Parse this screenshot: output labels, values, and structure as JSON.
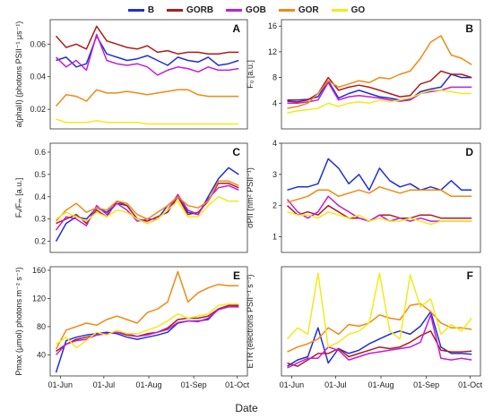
{
  "legend": [
    {
      "name": "B",
      "color": "#1f2fd6"
    },
    {
      "name": "GORB",
      "color": "#b01c1c"
    },
    {
      "name": "GOB",
      "color": "#c21fd8"
    },
    {
      "name": "GOR",
      "color": "#f08a12"
    },
    {
      "name": "GO",
      "color": "#f2ea1a"
    }
  ],
  "x_axis_title": "Date",
  "chart_data": [
    {
      "type": "line",
      "panel_letter": "A",
      "ylabel": "a(phaII) (photons PSII⁻¹ μs⁻¹)",
      "ylim": [
        0.008,
        0.075
      ],
      "yticks": [
        "0.02",
        "0.04",
        "0.06"
      ],
      "ytick_values": [
        0.02,
        0.04,
        0.06
      ],
      "xtick_labels": [],
      "x": [
        0,
        7,
        14,
        21,
        28,
        35,
        42,
        49,
        56,
        63,
        70,
        77,
        84,
        91,
        98,
        105,
        112,
        119,
        126
      ],
      "series": [
        {
          "name": "B",
          "values": [
            0.05,
            0.052,
            0.046,
            0.048,
            0.065,
            0.054,
            0.052,
            0.05,
            0.051,
            0.053,
            0.05,
            0.047,
            0.052,
            0.05,
            0.049,
            0.052,
            0.047,
            0.048,
            0.05
          ]
        },
        {
          "name": "GORB",
          "values": [
            0.065,
            0.058,
            0.06,
            0.057,
            0.071,
            0.062,
            0.06,
            0.058,
            0.057,
            0.059,
            0.055,
            0.056,
            0.054,
            0.055,
            0.055,
            0.054,
            0.054,
            0.055,
            0.055
          ]
        },
        {
          "name": "GOB",
          "values": [
            0.052,
            0.046,
            0.05,
            0.044,
            0.066,
            0.05,
            0.048,
            0.047,
            0.048,
            0.046,
            0.041,
            0.044,
            0.046,
            0.045,
            0.043,
            0.046,
            0.044,
            0.044,
            0.045
          ]
        },
        {
          "name": "GOR",
          "values": [
            0.022,
            0.029,
            0.028,
            0.025,
            0.032,
            0.03,
            0.03,
            0.031,
            0.03,
            0.029,
            0.03,
            0.031,
            0.032,
            0.032,
            0.029,
            0.028,
            0.028,
            0.028,
            0.028
          ]
        },
        {
          "name": "GO",
          "values": [
            0.014,
            0.012,
            0.012,
            0.012,
            0.013,
            0.012,
            0.012,
            0.012,
            0.012,
            0.011,
            0.011,
            0.011,
            0.011,
            0.011,
            0.011,
            0.011,
            0.011,
            0.011,
            0.011
          ]
        }
      ]
    },
    {
      "type": "line",
      "panel_letter": "B",
      "ylabel": "F₀ [a.u.]",
      "ylim": [
        0,
        17
      ],
      "yticks": [
        "4",
        "8",
        "12",
        "16"
      ],
      "ytick_values": [
        4,
        8,
        12,
        16
      ],
      "xtick_labels": [],
      "x": [
        0,
        7,
        14,
        21,
        28,
        35,
        42,
        49,
        56,
        63,
        70,
        77,
        84,
        91,
        98,
        105,
        112,
        119,
        126
      ],
      "series": [
        {
          "name": "B",
          "values": [
            4.5,
            4.5,
            4.6,
            5.0,
            7.5,
            4.8,
            5.5,
            6.0,
            5.5,
            5.0,
            4.8,
            4.5,
            4.6,
            5.8,
            6.2,
            6.5,
            8.5,
            8.0,
            8.0
          ]
        },
        {
          "name": "GORB",
          "values": [
            4.3,
            4.2,
            4.5,
            5.5,
            8.0,
            6.0,
            6.5,
            6.8,
            6.5,
            6.0,
            5.5,
            5.0,
            5.2,
            7.0,
            7.5,
            9.0,
            8.5,
            8.5,
            8.0
          ]
        },
        {
          "name": "GOB",
          "values": [
            4.0,
            4.0,
            4.2,
            4.5,
            7.2,
            4.5,
            5.0,
            5.2,
            5.0,
            4.8,
            4.5,
            4.3,
            4.5,
            5.5,
            5.8,
            6.0,
            6.5,
            6.5,
            6.5
          ]
        },
        {
          "name": "GOR",
          "values": [
            3.2,
            3.5,
            4.0,
            5.5,
            7.5,
            6.5,
            7.0,
            7.5,
            7.2,
            8.0,
            7.8,
            8.5,
            9.0,
            11.0,
            13.5,
            14.5,
            11.5,
            11.0,
            10.0
          ]
        },
        {
          "name": "GO",
          "values": [
            2.5,
            2.8,
            3.0,
            3.2,
            4.0,
            3.5,
            4.0,
            4.2,
            4.0,
            4.5,
            4.2,
            4.5,
            4.8,
            5.5,
            6.0,
            6.0,
            5.8,
            5.5,
            5.5
          ]
        }
      ]
    },
    {
      "type": "line",
      "panel_letter": "C",
      "ylabel": "Fᵥ/Fₘ [a.u.]",
      "ylim": [
        0.15,
        0.64
      ],
      "yticks": [
        "0.2",
        "0.3",
        "0.4",
        "0.5",
        "0.6"
      ],
      "ytick_values": [
        0.2,
        0.3,
        0.4,
        0.5,
        0.6
      ],
      "xtick_labels": [],
      "x": [
        0,
        7,
        14,
        21,
        28,
        35,
        42,
        49,
        56,
        63,
        70,
        77,
        84,
        91,
        98,
        105,
        112,
        119,
        126
      ],
      "series": [
        {
          "name": "B",
          "values": [
            0.2,
            0.28,
            0.31,
            0.3,
            0.35,
            0.33,
            0.37,
            0.36,
            0.3,
            0.28,
            0.3,
            0.36,
            0.4,
            0.33,
            0.32,
            0.4,
            0.48,
            0.53,
            0.5
          ]
        },
        {
          "name": "GORB",
          "values": [
            0.28,
            0.3,
            0.32,
            0.28,
            0.34,
            0.31,
            0.38,
            0.36,
            0.3,
            0.29,
            0.31,
            0.33,
            0.4,
            0.32,
            0.33,
            0.38,
            0.46,
            0.46,
            0.44
          ]
        },
        {
          "name": "GOB",
          "values": [
            0.25,
            0.31,
            0.3,
            0.27,
            0.36,
            0.32,
            0.37,
            0.34,
            0.29,
            0.3,
            0.3,
            0.34,
            0.41,
            0.34,
            0.32,
            0.39,
            0.44,
            0.45,
            0.43
          ]
        },
        {
          "name": "GOR",
          "values": [
            0.29,
            0.34,
            0.37,
            0.33,
            0.35,
            0.34,
            0.38,
            0.37,
            0.32,
            0.3,
            0.33,
            0.36,
            0.4,
            0.36,
            0.35,
            0.38,
            0.47,
            0.47,
            0.45
          ]
        },
        {
          "name": "GO",
          "values": [
            0.3,
            0.33,
            0.31,
            0.29,
            0.33,
            0.31,
            0.34,
            0.33,
            0.3,
            0.28,
            0.3,
            0.34,
            0.38,
            0.31,
            0.31,
            0.36,
            0.4,
            0.38,
            0.38
          ]
        }
      ]
    },
    {
      "type": "line",
      "panel_letter": "D",
      "ylabel": "σPII (nm² PSII⁻¹)",
      "ylim": [
        0.5,
        4.0
      ],
      "yticks": [
        "1",
        "2",
        "3",
        "4"
      ],
      "ytick_values": [
        1,
        2,
        3,
        4
      ],
      "xtick_labels": [],
      "x": [
        0,
        7,
        14,
        21,
        28,
        35,
        42,
        49,
        56,
        63,
        70,
        77,
        84,
        91,
        98,
        105,
        112,
        119,
        126
      ],
      "series": [
        {
          "name": "B",
          "values": [
            2.5,
            2.6,
            2.6,
            2.7,
            3.5,
            3.2,
            2.7,
            3.0,
            2.5,
            3.2,
            2.8,
            2.6,
            2.7,
            2.5,
            2.6,
            2.5,
            2.8,
            2.5,
            2.5
          ]
        },
        {
          "name": "GORB",
          "values": [
            2.0,
            1.7,
            1.8,
            1.7,
            2.0,
            1.8,
            1.6,
            1.6,
            1.5,
            1.7,
            1.7,
            1.6,
            1.6,
            1.7,
            1.7,
            1.6,
            1.6,
            1.6,
            1.6
          ]
        },
        {
          "name": "GOB",
          "values": [
            2.2,
            1.8,
            1.6,
            1.8,
            2.3,
            2.0,
            1.8,
            1.6,
            1.5,
            1.7,
            1.5,
            1.6,
            1.5,
            1.6,
            1.5,
            1.5,
            1.5,
            1.5,
            1.5
          ]
        },
        {
          "name": "GOR",
          "values": [
            2.1,
            2.2,
            2.3,
            2.5,
            2.5,
            2.3,
            2.4,
            2.5,
            2.4,
            2.6,
            2.5,
            2.4,
            2.5,
            2.5,
            2.5,
            2.5,
            2.3,
            2.3,
            2.3
          ]
        },
        {
          "name": "GO",
          "values": [
            1.8,
            1.7,
            1.7,
            1.6,
            1.8,
            1.7,
            1.6,
            1.7,
            1.5,
            1.6,
            1.5,
            1.5,
            1.6,
            1.5,
            1.4,
            1.5,
            1.5,
            1.5,
            1.5
          ]
        }
      ]
    },
    {
      "type": "line",
      "panel_letter": "E",
      "ylabel": "Pmax (μmol) photons m⁻² s⁻¹)",
      "ylim": [
        10,
        165
      ],
      "yticks": [
        "40",
        "80",
        "120",
        "160"
      ],
      "ytick_values": [
        40,
        80,
        120,
        160
      ],
      "xtick_labels": [
        "01-Jun",
        "01-Jul",
        "01-Aug",
        "01-Sep",
        "01-Oct"
      ],
      "xtick_values": [
        3,
        33,
        64,
        95,
        125
      ],
      "x": [
        0,
        7,
        14,
        21,
        28,
        35,
        42,
        49,
        56,
        63,
        70,
        77,
        84,
        91,
        98,
        105,
        112,
        119,
        126
      ],
      "series": [
        {
          "name": "B",
          "values": [
            15,
            60,
            65,
            68,
            70,
            72,
            70,
            65,
            62,
            65,
            68,
            72,
            85,
            88,
            88,
            90,
            105,
            110,
            108
          ]
        },
        {
          "name": "GORB",
          "values": [
            45,
            55,
            62,
            65,
            68,
            70,
            72,
            68,
            66,
            70,
            72,
            78,
            90,
            92,
            92,
            95,
            105,
            110,
            110
          ]
        },
        {
          "name": "GOB",
          "values": [
            40,
            55,
            60,
            62,
            68,
            70,
            72,
            70,
            66,
            68,
            72,
            76,
            86,
            88,
            87,
            92,
            104,
            108,
            108
          ]
        },
        {
          "name": "GOR",
          "values": [
            48,
            75,
            80,
            85,
            82,
            90,
            95,
            90,
            85,
            100,
            105,
            115,
            158,
            115,
            128,
            135,
            140,
            138,
            138
          ]
        },
        {
          "name": "GO",
          "values": [
            55,
            65,
            50,
            60,
            72,
            68,
            75,
            70,
            70,
            75,
            80,
            88,
            98,
            92,
            95,
            98,
            110,
            112,
            112
          ]
        }
      ]
    },
    {
      "type": "line",
      "panel_letter": "F",
      "ylabel": "ETR (electrons PSII⁻¹ s⁻¹)",
      "ylim": [
        120,
        800
      ],
      "yticks": [],
      "ytick_values": [],
      "xtick_labels": [
        "01-Jun",
        "01-Jul",
        "01-Aug",
        "01-Sep",
        "01-Oct"
      ],
      "xtick_values": [
        3,
        33,
        64,
        95,
        125
      ],
      "x": [
        0,
        7,
        14,
        21,
        28,
        35,
        42,
        49,
        56,
        63,
        70,
        77,
        84,
        91,
        98,
        105,
        112,
        119,
        126
      ],
      "series": [
        {
          "name": "B",
          "values": [
            180,
            220,
            240,
            420,
            200,
            290,
            260,
            280,
            320,
            350,
            380,
            400,
            380,
            430,
            520,
            300,
            260,
            260,
            255
          ]
        },
        {
          "name": "GORB",
          "values": [
            200,
            180,
            220,
            260,
            260,
            290,
            240,
            260,
            280,
            300,
            290,
            300,
            330,
            370,
            400,
            280,
            270,
            270,
            275
          ]
        },
        {
          "name": "GOB",
          "values": [
            170,
            200,
            230,
            230,
            300,
            280,
            220,
            240,
            260,
            270,
            280,
            290,
            300,
            330,
            500,
            230,
            220,
            230,
            220
          ]
        },
        {
          "name": "GOR",
          "values": [
            270,
            300,
            320,
            350,
            420,
            380,
            440,
            430,
            450,
            500,
            480,
            470,
            560,
            570,
            520,
            450,
            420,
            420,
            410
          ]
        },
        {
          "name": "GO",
          "values": [
            350,
            420,
            380,
            760,
            300,
            330,
            380,
            400,
            450,
            760,
            400,
            350,
            750,
            550,
            600,
            380,
            440,
            400,
            480
          ]
        }
      ]
    }
  ]
}
